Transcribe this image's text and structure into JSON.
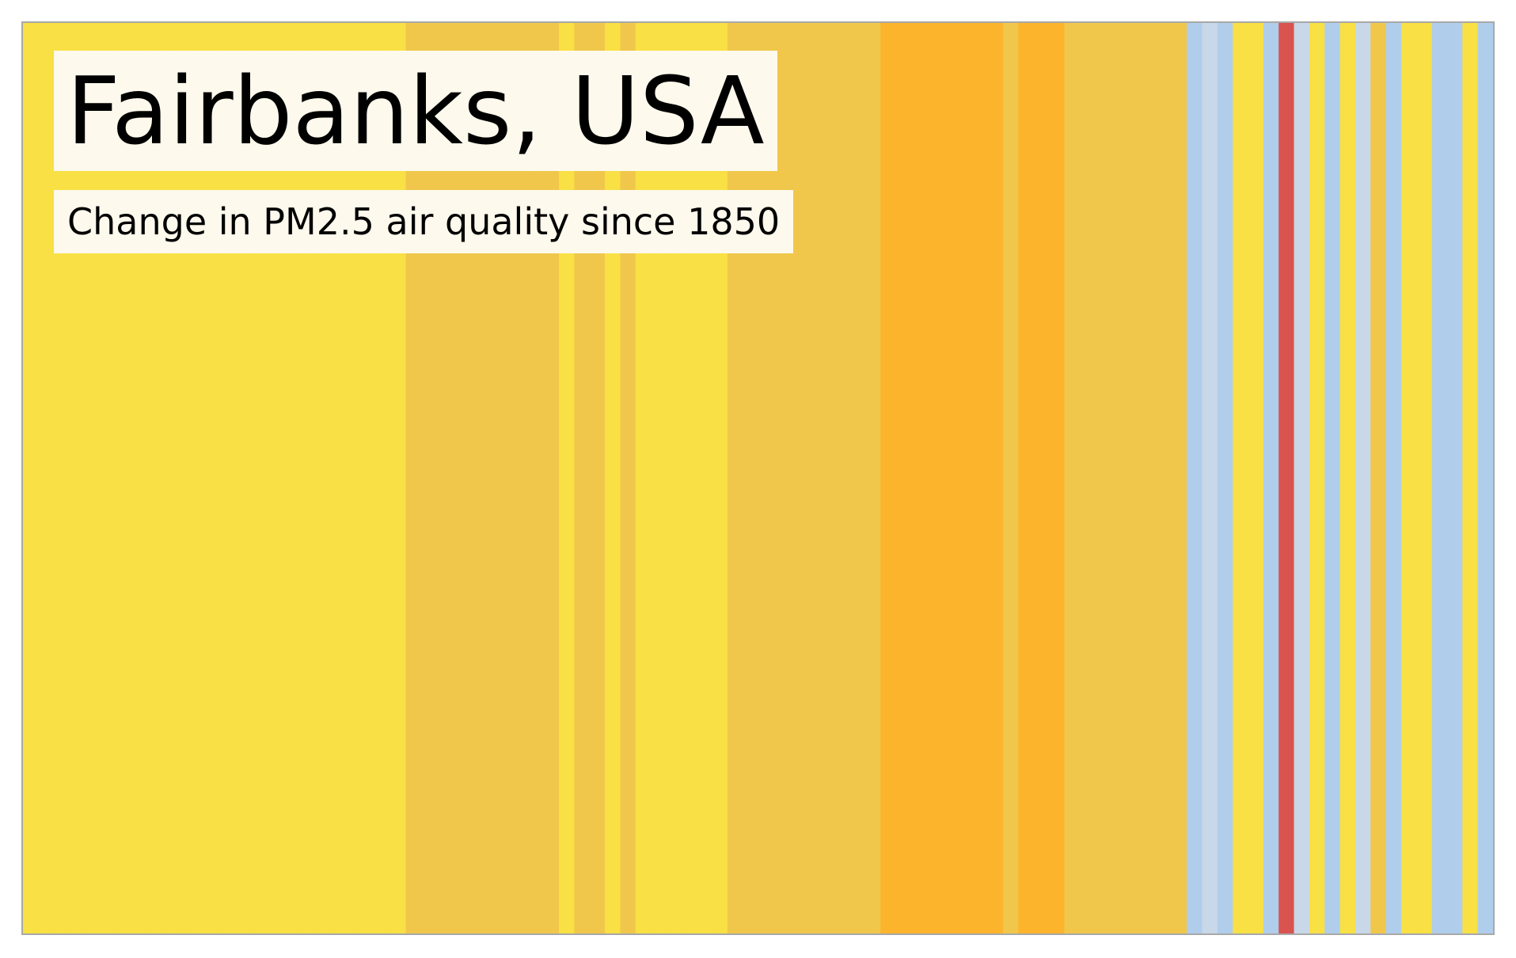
{
  "chart_data": {
    "type": "heatmap",
    "title": "Fairbanks, USA",
    "subtitle": "Change in PM2.5 air quality since 1850",
    "start_year": 1850,
    "stripe_values": [
      3,
      3,
      3,
      3,
      3,
      3,
      3,
      3,
      3,
      3,
      3,
      3,
      3,
      3,
      3,
      3,
      3,
      3,
      3,
      3,
      3,
      3,
      3,
      3,
      3,
      4,
      4,
      4,
      4,
      4,
      4,
      4,
      4,
      4,
      4,
      3,
      4,
      4,
      3,
      4,
      3,
      3,
      3,
      3,
      3,
      3,
      4,
      4,
      4,
      4,
      4,
      4,
      4,
      4,
      4,
      4,
      5,
      5,
      5,
      5,
      5,
      5,
      5,
      5,
      4,
      5,
      5,
      5,
      4,
      4,
      4,
      4,
      4,
      4,
      4,
      4,
      1,
      2,
      1,
      3,
      3,
      1,
      6,
      2,
      3,
      1,
      3,
      2,
      4,
      1,
      3,
      3,
      1,
      1,
      3,
      1
    ],
    "palette": {
      "1": "#b0cdeb",
      "2": "#c8d8e8",
      "3": "#f8e045",
      "4": "#f0c74b",
      "5": "#fbb42c",
      "6": "#d9534f"
    },
    "grid": false,
    "legend": "none"
  }
}
